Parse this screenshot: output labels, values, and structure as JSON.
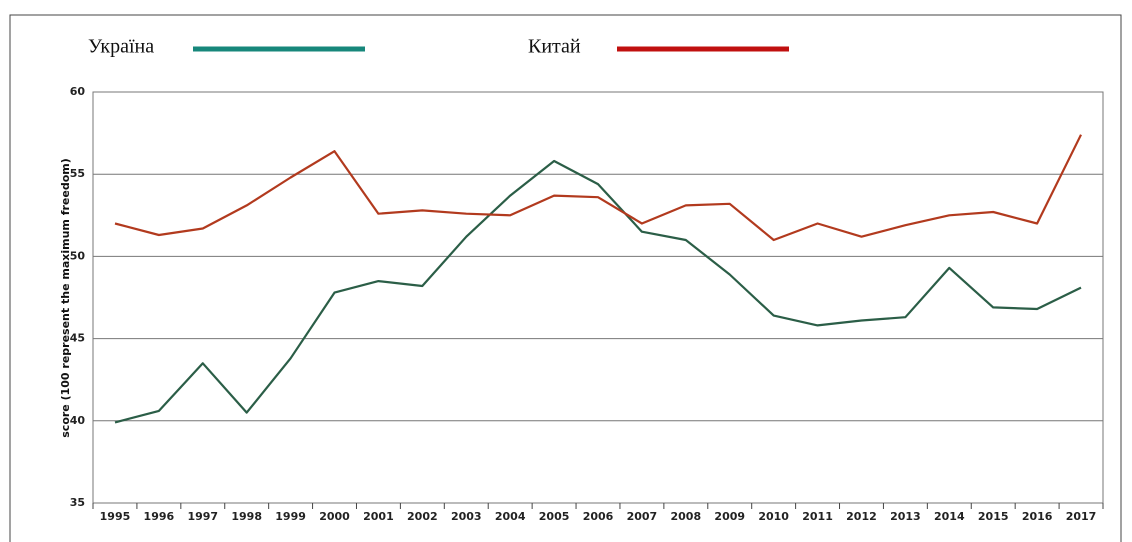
{
  "chart_data": {
    "type": "line",
    "y_label": "score (100 represent the maximum freedom)",
    "categories": [
      "1995",
      "1996",
      "1997",
      "1998",
      "1999",
      "2000",
      "2001",
      "2002",
      "2003",
      "2004",
      "2005",
      "2006",
      "2007",
      "2008",
      "2009",
      "2010",
      "2011",
      "2012",
      "2013",
      "2014",
      "2015",
      "2016",
      "2017"
    ],
    "series": [
      {
        "name": "Україна",
        "color": "#2b5e47",
        "legend_color": "#17877b",
        "values": [
          39.9,
          40.6,
          43.5,
          40.5,
          43.8,
          47.8,
          48.5,
          48.2,
          51.2,
          53.7,
          55.8,
          54.4,
          51.5,
          51.0,
          48.9,
          46.4,
          45.8,
          46.1,
          46.3,
          49.3,
          46.9,
          46.8,
          48.1
        ]
      },
      {
        "name": "Китай",
        "color": "#b23a1e",
        "legend_color": "#c0100f",
        "values": [
          52.0,
          51.3,
          51.7,
          53.1,
          54.8,
          56.4,
          52.6,
          52.8,
          52.6,
          52.5,
          53.7,
          53.6,
          52.0,
          53.1,
          53.2,
          51.0,
          52.0,
          51.2,
          51.9,
          52.5,
          52.7,
          52.0,
          57.4
        ]
      }
    ],
    "ylim": [
      35,
      60
    ],
    "yticks": [
      35,
      40,
      45,
      50,
      55,
      60
    ],
    "grid": true
  }
}
